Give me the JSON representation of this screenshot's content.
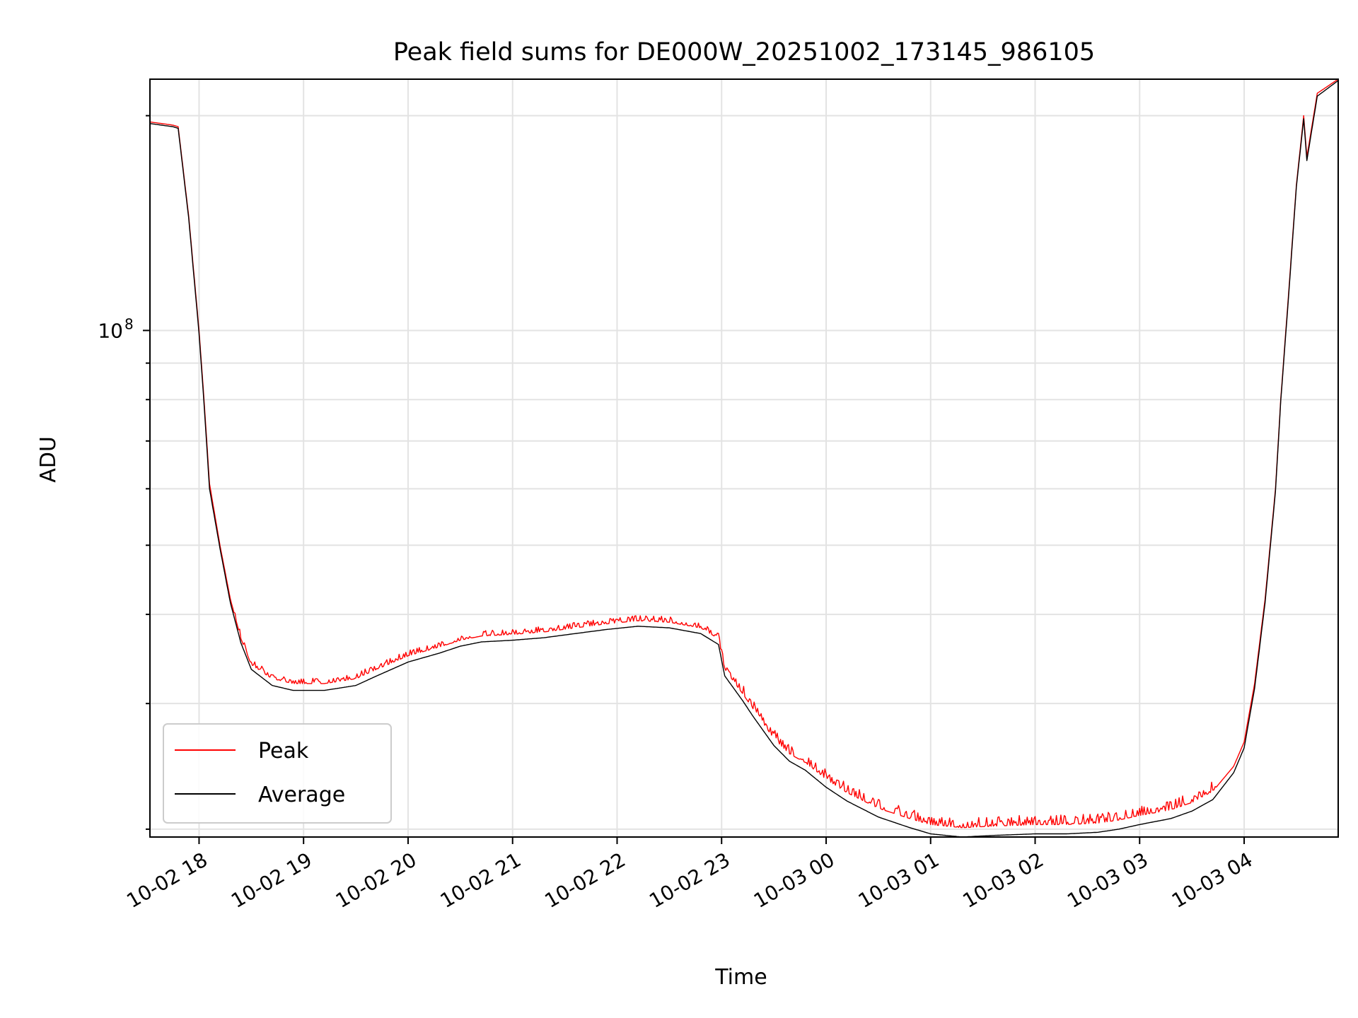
{
  "chart_data": {
    "type": "line",
    "title": "Peak field sums for DE000W_20251002_173145_986105",
    "xlabel": "Time",
    "ylabel": "ADU",
    "yscale": "log",
    "grid": true,
    "legend_position": "lower-left",
    "xlim_hours": [
      -0.47,
      10.9
    ],
    "ylim": [
      19500000,
      225000000
    ],
    "x_ticks": [
      {
        "hour": 0,
        "label": "10-02 18"
      },
      {
        "hour": 1,
        "label": "10-02 19"
      },
      {
        "hour": 2,
        "label": "10-02 20"
      },
      {
        "hour": 3,
        "label": "10-02 21"
      },
      {
        "hour": 4,
        "label": "10-02 22"
      },
      {
        "hour": 5,
        "label": "10-02 23"
      },
      {
        "hour": 6,
        "label": "10-03 00"
      },
      {
        "hour": 7,
        "label": "10-03 01"
      },
      {
        "hour": 8,
        "label": "10-03 02"
      },
      {
        "hour": 9,
        "label": "10-03 03"
      },
      {
        "hour": 10,
        "label": "10-03 04"
      }
    ],
    "y_major_ticks": [
      {
        "value": 100000000,
        "base": "10",
        "exp": "8"
      }
    ],
    "y_minor_ticks": [
      20000000,
      30000000,
      40000000,
      50000000,
      60000000,
      70000000,
      80000000,
      90000000,
      200000000
    ],
    "series": [
      {
        "name": "Peak",
        "color": "#ff0000",
        "noise": true,
        "x": [
          -0.47,
          -0.25,
          -0.2,
          -0.1,
          0.0,
          0.05,
          0.1,
          0.2,
          0.3,
          0.4,
          0.5,
          0.7,
          0.9,
          1.0,
          1.2,
          1.5,
          1.7,
          2.0,
          2.3,
          2.5,
          2.7,
          3.0,
          3.3,
          3.6,
          3.9,
          4.2,
          4.5,
          4.8,
          4.97,
          5.03,
          5.2,
          5.3,
          5.5,
          5.65,
          5.8,
          6.0,
          6.2,
          6.5,
          6.8,
          7.0,
          7.3,
          7.6,
          8.0,
          8.3,
          8.6,
          8.8,
          9.0,
          9.3,
          9.5,
          9.7,
          9.9,
          10.0,
          10.1,
          10.2,
          10.3,
          10.35,
          10.42,
          10.5,
          10.57,
          10.6,
          10.7,
          10.9
        ],
        "y": [
          196000000,
          194000000,
          193000000,
          145000000,
          100000000,
          79000000,
          61000000,
          50000000,
          42000000,
          37000000,
          34000000,
          32500000,
          32000000,
          32000000,
          32000000,
          32500000,
          33500000,
          35000000,
          36000000,
          36800000,
          37300000,
          37500000,
          37800000,
          38300000,
          38800000,
          39200000,
          39000000,
          38300000,
          37000000,
          33500000,
          31000000,
          29500000,
          26800000,
          25500000,
          24800000,
          23500000,
          22500000,
          21400000,
          20700000,
          20300000,
          20100000,
          20200000,
          20300000,
          20300000,
          20400000,
          20600000,
          20900000,
          21300000,
          21800000,
          22600000,
          24500000,
          26500000,
          32000000,
          42000000,
          60000000,
          80000000,
          110000000,
          160000000,
          200000000,
          175000000,
          215000000,
          225000000
        ]
      },
      {
        "name": "Average",
        "color": "#000000",
        "noise": false,
        "x": [
          -0.47,
          -0.25,
          -0.2,
          -0.1,
          0.0,
          0.05,
          0.1,
          0.2,
          0.3,
          0.4,
          0.5,
          0.7,
          0.9,
          1.0,
          1.2,
          1.5,
          1.7,
          2.0,
          2.3,
          2.5,
          2.7,
          3.0,
          3.3,
          3.6,
          3.9,
          4.2,
          4.5,
          4.8,
          4.97,
          5.03,
          5.2,
          5.3,
          5.5,
          5.65,
          5.8,
          6.0,
          6.2,
          6.5,
          6.8,
          7.0,
          7.3,
          7.6,
          8.0,
          8.3,
          8.6,
          8.8,
          9.0,
          9.3,
          9.5,
          9.7,
          9.9,
          10.0,
          10.1,
          10.2,
          10.3,
          10.35,
          10.42,
          10.5,
          10.57,
          10.6,
          10.7,
          10.9
        ],
        "y": [
          195000000,
          193000000,
          192000000,
          144000000,
          99000000,
          78000000,
          60000000,
          49500000,
          41500000,
          36500000,
          33500000,
          31800000,
          31300000,
          31300000,
          31300000,
          31800000,
          32800000,
          34300000,
          35300000,
          36100000,
          36600000,
          36800000,
          37100000,
          37600000,
          38100000,
          38500000,
          38300000,
          37600000,
          36300000,
          32800000,
          30300000,
          28800000,
          26200000,
          24900000,
          24200000,
          22900000,
          21900000,
          20800000,
          20100000,
          19700000,
          19500000,
          19600000,
          19700000,
          19700000,
          19800000,
          20000000,
          20300000,
          20700000,
          21200000,
          22000000,
          24000000,
          26000000,
          31500000,
          41500000,
          59500000,
          79500000,
          109000000,
          159000000,
          198000000,
          173000000,
          213000000,
          224000000
        ]
      }
    ]
  }
}
